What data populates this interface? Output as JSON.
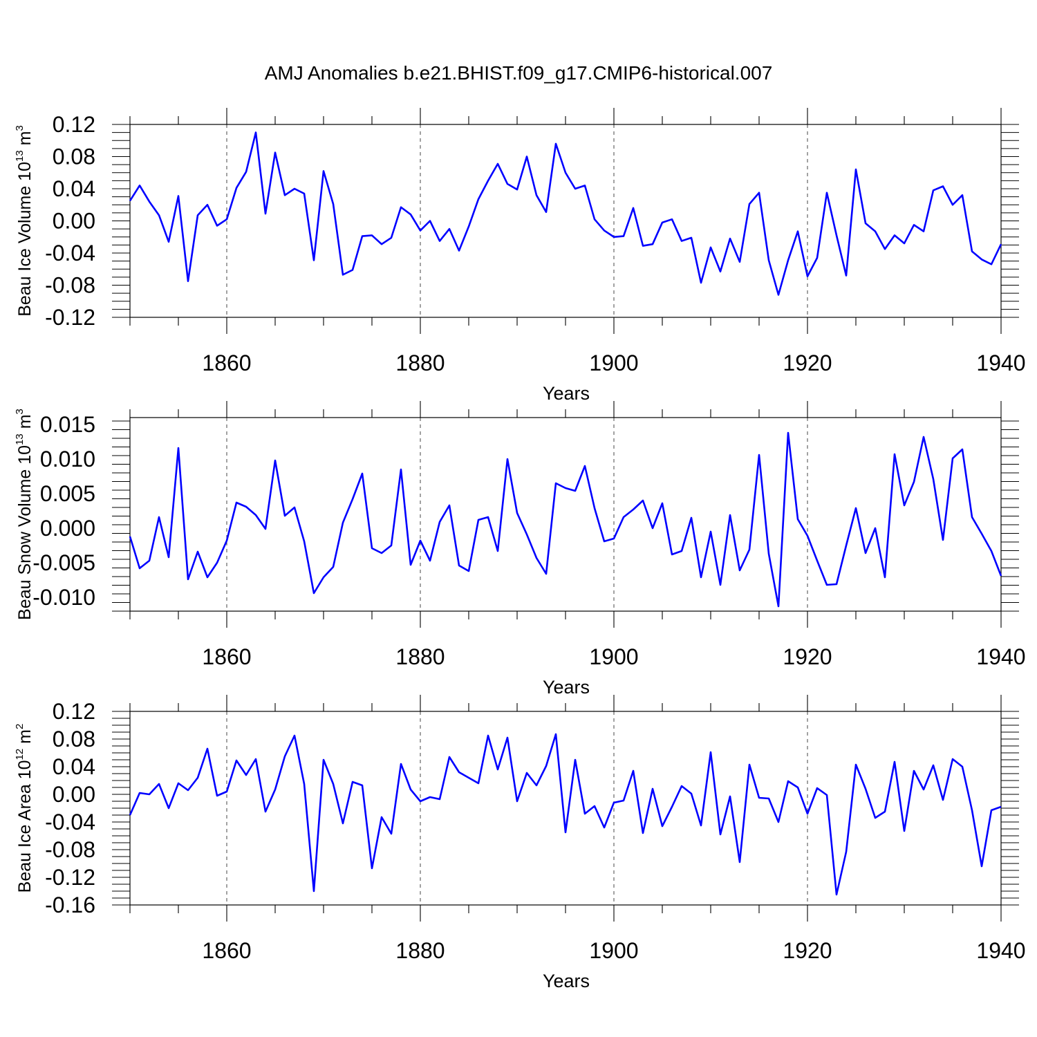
{
  "chart_data": {
    "title": "AMJ Anomalies b.e21.BHIST.f09_g17.CMIP6-historical.007",
    "type": "line",
    "xlabel": "Years",
    "xlim": [
      1850,
      1940
    ],
    "xticks": [
      "1860",
      "1880",
      "1900",
      "1920",
      "1940"
    ],
    "panels": [
      {
        "name": "ice-volume",
        "ylabel_main": "Beau Ice Volume 10",
        "ylabel_exp": "13",
        "ylabel_unit": " m",
        "ylabel_unit_exp": "3",
        "ylim": [
          -0.12,
          0.12
        ],
        "yticks": [
          "0.12",
          "0.08",
          "0.04",
          "0.00",
          "-0.04",
          "-0.08",
          "-0.12"
        ],
        "series": [
          {
            "name": "Beau Ice Volume",
            "color": "#0000ff",
            "x_start": 1850,
            "values": [
              0.025,
              0.044,
              0.024,
              0.007,
              -0.026,
              0.031,
              -0.075,
              0.007,
              0.02,
              -0.006,
              0.002,
              0.041,
              0.061,
              0.11,
              0.009,
              0.085,
              0.032,
              0.04,
              0.034,
              -0.049,
              0.062,
              0.021,
              -0.067,
              -0.061,
              -0.019,
              -0.018,
              -0.029,
              -0.021,
              0.017,
              0.008,
              -0.012,
              0.0,
              -0.025,
              -0.01,
              -0.037,
              -0.007,
              0.027,
              0.05,
              0.071,
              0.046,
              0.039,
              0.08,
              0.032,
              0.011,
              0.096,
              0.06,
              0.04,
              0.044,
              0.002,
              -0.012,
              -0.02,
              -0.019,
              0.016,
              -0.031,
              -0.029,
              -0.002,
              0.002,
              -0.025,
              -0.021,
              -0.077,
              -0.033,
              -0.063,
              -0.022,
              -0.051,
              0.021,
              0.035,
              -0.049,
              -0.092,
              -0.049,
              -0.013,
              -0.069,
              -0.046,
              0.035,
              -0.018,
              -0.068,
              0.064,
              -0.003,
              -0.013,
              -0.035,
              -0.018,
              -0.028,
              -0.005,
              -0.013,
              0.038,
              0.043,
              0.02,
              0.032,
              -0.038,
              -0.048,
              -0.054,
              -0.029
            ]
          }
        ]
      },
      {
        "name": "snow-volume",
        "ylabel_main": "Beau Snow Volume 10",
        "ylabel_exp": "13",
        "ylabel_unit": " m",
        "ylabel_unit_exp": "3",
        "ylim": [
          -0.012,
          0.016
        ],
        "yticks": [
          "0.015",
          "0.010",
          "0.005",
          "0.000",
          "-0.005",
          "-0.010"
        ],
        "series": [
          {
            "name": "Beau Snow Volume",
            "color": "#0000ff",
            "x_start": 1850,
            "values": [
              -0.0012,
              -0.0058,
              -0.0047,
              0.0016,
              -0.0042,
              0.0116,
              -0.0074,
              -0.0034,
              -0.0071,
              -0.005,
              -0.0018,
              0.0037,
              0.0031,
              0.0019,
              -0.0001,
              0.0098,
              0.0018,
              0.003,
              -0.0019,
              -0.0094,
              -0.0071,
              -0.0056,
              0.0008,
              0.0042,
              0.0079,
              -0.0029,
              -0.0036,
              -0.0025,
              0.0085,
              -0.0053,
              -0.0018,
              -0.0047,
              0.0009,
              0.0033,
              -0.0054,
              -0.0062,
              0.0012,
              0.0016,
              -0.0033,
              0.01,
              0.0022,
              -0.0009,
              -0.0043,
              -0.0066,
              0.0065,
              0.0058,
              0.0054,
              0.009,
              0.0029,
              -0.0019,
              -0.0015,
              0.0016,
              0.0027,
              0.004,
              0.0,
              0.0036,
              -0.0038,
              -0.0033,
              0.0015,
              -0.0071,
              -0.0005,
              -0.0082,
              0.0019,
              -0.0061,
              -0.0031,
              0.0106,
              -0.0037,
              -0.0113,
              0.0138,
              0.0013,
              -0.0011,
              -0.0047,
              -0.0082,
              -0.0081,
              -0.0025,
              0.0029,
              -0.0036,
              0.0,
              -0.0071,
              0.0107,
              0.0033,
              0.0067,
              0.0132,
              0.0071,
              -0.0017,
              0.0101,
              0.0114,
              0.0016,
              -0.0008,
              -0.0033,
              -0.0069
            ]
          }
        ]
      },
      {
        "name": "ice-area",
        "ylabel_main": "Beau Ice Area 10",
        "ylabel_exp": "12",
        "ylabel_unit": " m",
        "ylabel_unit_exp": "2",
        "ylim": [
          -0.16,
          0.12
        ],
        "yticks": [
          "0.12",
          "0.08",
          "0.04",
          "0.00",
          "-0.04",
          "-0.08",
          "-0.12",
          "-0.16"
        ],
        "series": [
          {
            "name": "Beau Ice Area",
            "color": "#0000ff",
            "x_start": 1850,
            "values": [
              -0.03,
              0.002,
              0.0,
              0.015,
              -0.02,
              0.016,
              0.006,
              0.024,
              0.066,
              -0.002,
              0.004,
              0.049,
              0.028,
              0.051,
              -0.025,
              0.007,
              0.055,
              0.085,
              0.015,
              -0.14,
              0.05,
              0.015,
              -0.042,
              0.018,
              0.013,
              -0.107,
              -0.033,
              -0.057,
              0.044,
              0.007,
              -0.01,
              -0.004,
              -0.007,
              0.054,
              0.032,
              0.024,
              0.016,
              0.085,
              0.036,
              0.082,
              -0.01,
              0.031,
              0.013,
              0.041,
              0.087,
              -0.055,
              0.05,
              -0.028,
              -0.017,
              -0.048,
              -0.012,
              -0.009,
              0.034,
              -0.056,
              0.008,
              -0.046,
              -0.018,
              0.012,
              0.001,
              -0.045,
              0.061,
              -0.058,
              -0.003,
              -0.098,
              0.043,
              -0.005,
              -0.006,
              -0.04,
              0.019,
              0.01,
              -0.028,
              0.009,
              -0.001,
              -0.145,
              -0.083,
              0.043,
              0.008,
              -0.034,
              -0.025,
              0.047,
              -0.053,
              0.034,
              0.007,
              0.042,
              -0.008,
              0.051,
              0.04,
              -0.023,
              -0.104,
              -0.023,
              -0.018
            ]
          }
        ]
      }
    ]
  }
}
